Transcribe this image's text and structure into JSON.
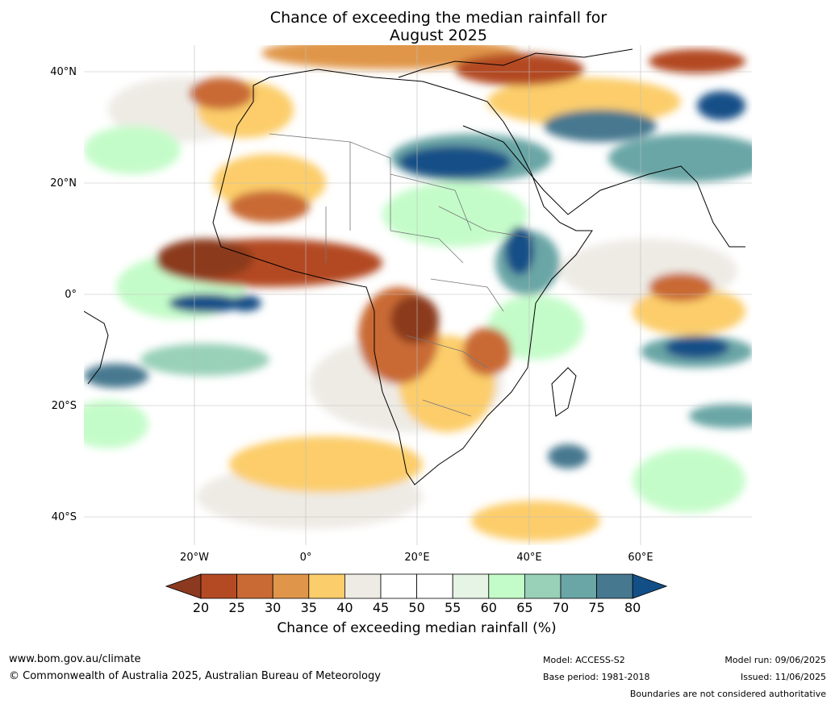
{
  "title": {
    "line1": "Chance of exceeding the median rainfall for",
    "line2": "August 2025"
  },
  "map": {
    "lat_labels": [
      "40°N",
      "20°N",
      "0°",
      "20°S",
      "40°S"
    ],
    "lon_labels": [
      "20°W",
      "0°",
      "20°E",
      "40°E",
      "60°E"
    ]
  },
  "colorbar": {
    "ticks": [
      "20",
      "25",
      "30",
      "35",
      "40",
      "45",
      "50",
      "55",
      "60",
      "65",
      "70",
      "75",
      "80"
    ],
    "colors": [
      "#8b3a1f",
      "#b34a24",
      "#c96a34",
      "#e0964a",
      "#fccd6b",
      "#eeebe5",
      "#ffffff",
      "#ffffff",
      "#e6f4e6",
      "#c4fcc9",
      "#98d0b8",
      "#6aa6a6",
      "#46788f",
      "#134f87"
    ],
    "label": "Chance of exceeding median rainfall (%)"
  },
  "footer": {
    "website": "www.bom.gov.au/climate",
    "copyright": "© Commonwealth of Australia 2025, Australian Bureau of Meteorology",
    "model": "Model: ACCESS-S2",
    "base_period": "Base period: 1981-2018",
    "model_run": "Model run: 09/06/2025",
    "issued": "Issued: 11/06/2025",
    "disclaimer": "Boundaries are not considered authoritative"
  }
}
